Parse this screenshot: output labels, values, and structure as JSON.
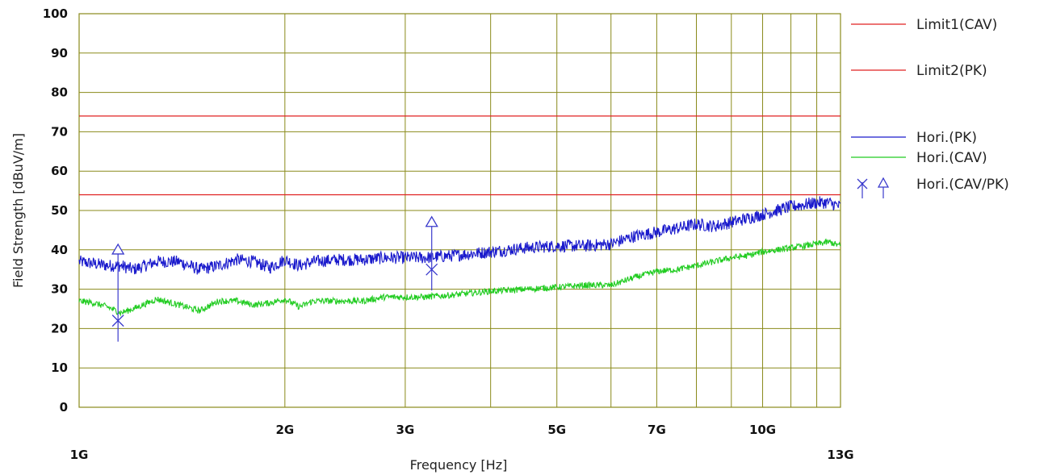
{
  "chart_data": {
    "type": "line",
    "xlabel": "Frequency [Hz]",
    "ylabel": "Field Strength [dBuV/m]",
    "x_scale": "log",
    "xlim": [
      "1G",
      "13G"
    ],
    "ylim": [
      0,
      100
    ],
    "grid": true,
    "legend_position": "right",
    "y_ticks": [
      "0",
      "10",
      "20",
      "30",
      "40",
      "50",
      "60",
      "70",
      "80",
      "90",
      "100"
    ],
    "x_ticks": [
      {
        "label": "1G",
        "value_ghz": 1
      },
      {
        "label": "2G",
        "value_ghz": 2
      },
      {
        "label": "3G",
        "value_ghz": 3
      },
      {
        "label": "5G",
        "value_ghz": 5
      },
      {
        "label": "7G",
        "value_ghz": 7
      },
      {
        "label": "10G",
        "value_ghz": 10
      },
      {
        "label": "13G",
        "value_ghz": 13
      }
    ],
    "x_gridlines_ghz": [
      2,
      3,
      4,
      5,
      6,
      7,
      8,
      9,
      10,
      11,
      12
    ],
    "series": [
      {
        "name": "Limit1(CAV)",
        "kind": "limit",
        "color": "#e02020",
        "value": 54
      },
      {
        "name": "Limit2(PK)",
        "kind": "limit",
        "color": "#e02020",
        "value": 74
      },
      {
        "name": "Hori.(PK)",
        "kind": "trace",
        "color": "#1a1acc",
        "x_ghz": [
          1.0,
          1.05,
          1.1,
          1.15,
          1.2,
          1.3,
          1.4,
          1.5,
          1.6,
          1.7,
          1.8,
          1.9,
          2.0,
          2.1,
          2.2,
          2.4,
          2.6,
          2.8,
          3.0,
          3.2,
          3.5,
          4.0,
          4.5,
          5.0,
          5.5,
          6.0,
          6.5,
          7.0,
          7.5,
          8.0,
          8.5,
          9.0,
          9.5,
          10.0,
          10.5,
          11.0,
          11.5,
          12.0,
          12.5,
          13.0
        ],
        "values": [
          37,
          36.5,
          36,
          36,
          35,
          37,
          37,
          35,
          36,
          37.5,
          37,
          35.5,
          37.5,
          36,
          37,
          37.5,
          37.5,
          38,
          38,
          38,
          38.5,
          39.5,
          40.5,
          41,
          41,
          41.5,
          43.5,
          44.5,
          45.5,
          46.5,
          46,
          47,
          48,
          49,
          50,
          51,
          51.5,
          52,
          52,
          51
        ]
      },
      {
        "name": "Hori.(CAV)",
        "kind": "trace",
        "color": "#22cc22",
        "x_ghz": [
          1.0,
          1.05,
          1.1,
          1.15,
          1.2,
          1.3,
          1.4,
          1.5,
          1.6,
          1.7,
          1.8,
          1.9,
          2.0,
          2.1,
          2.2,
          2.4,
          2.6,
          2.8,
          3.0,
          3.2,
          3.5,
          4.0,
          4.5,
          5.0,
          5.5,
          6.0,
          6.5,
          7.0,
          7.5,
          8.0,
          8.5,
          9.0,
          9.5,
          10.0,
          10.5,
          11.0,
          11.5,
          12.0,
          12.5,
          13.0
        ],
        "values": [
          27,
          26.5,
          25.5,
          24,
          25,
          27.5,
          26,
          24.5,
          27,
          27,
          26,
          26.5,
          27.5,
          25.5,
          27,
          27,
          27,
          28,
          28,
          28,
          28.5,
          29.5,
          30,
          30.5,
          31,
          31,
          33,
          34.5,
          35,
          36,
          37,
          38,
          38.5,
          39.5,
          40,
          40.5,
          41,
          41.5,
          42,
          41
        ]
      },
      {
        "name": "Hori.(CAV/PK)",
        "kind": "markers",
        "color": "#3a3acc",
        "points": [
          {
            "freq_ghz": 1.14,
            "cav": 22,
            "pk": 41
          },
          {
            "freq_ghz": 3.28,
            "cav": 35,
            "pk": 48
          }
        ]
      }
    ]
  },
  "page_data_colors": {
    "grid": "#8a8a1a",
    "background": "#ffffff"
  }
}
